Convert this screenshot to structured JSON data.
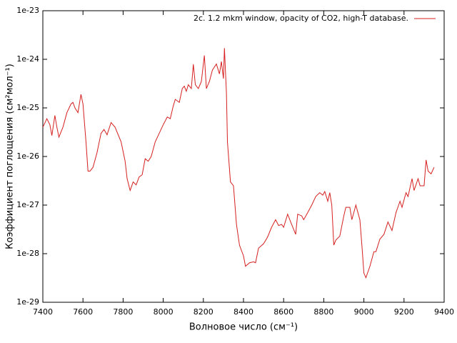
{
  "chart_data": {
    "type": "line",
    "xlabel": "Волновое число (см⁻¹)",
    "ylabel": "Коэффициент поглощения (см²мол⁻¹)",
    "log_y": true,
    "legend": "top-right",
    "xlim": [
      7400,
      9400
    ],
    "xticks": [
      7400,
      7600,
      7800,
      8000,
      8200,
      8400,
      8600,
      8800,
      9000,
      9200,
      9400
    ],
    "ylim": [
      1e-29,
      1e-23
    ],
    "yticks": [
      1e-29,
      1e-28,
      1e-27,
      1e-26,
      1e-25,
      1e-24,
      1e-23
    ],
    "x": [
      7400,
      7420,
      7435,
      7445,
      7460,
      7470,
      7480,
      7500,
      7520,
      7540,
      7550,
      7560,
      7575,
      7590,
      7600,
      7615,
      7625,
      7635,
      7650,
      7670,
      7690,
      7705,
      7720,
      7740,
      7760,
      7790,
      7810,
      7820,
      7835,
      7850,
      7865,
      7880,
      7895,
      7910,
      7925,
      7940,
      7960,
      7980,
      8000,
      8020,
      8035,
      8050,
      8060,
      8080,
      8095,
      8105,
      8115,
      8125,
      8140,
      8150,
      8160,
      8175,
      8190,
      8205,
      8215,
      8230,
      8245,
      8265,
      8280,
      8290,
      8300,
      8305,
      8315,
      8320,
      8335,
      8350,
      8365,
      8380,
      8400,
      8410,
      8430,
      8450,
      8460,
      8475,
      8500,
      8520,
      8540,
      8560,
      8575,
      8590,
      8600,
      8620,
      8640,
      8660,
      8670,
      8690,
      8700,
      8720,
      8740,
      8760,
      8780,
      8795,
      8805,
      8820,
      8830,
      8840,
      8850,
      8860,
      8880,
      8900,
      8910,
      8930,
      8940,
      8960,
      8980,
      8990,
      9000,
      9010,
      9030,
      9050,
      9060,
      9080,
      9100,
      9120,
      9140,
      9160,
      9180,
      9190,
      9210,
      9220,
      9240,
      9250,
      9270,
      9280,
      9300,
      9310,
      9320,
      9335,
      9350
    ],
    "series": [
      {
        "name": "2c. 1.2 mkm window, opacity of CO2, high-T database.",
        "color": "#d62020",
        "values": [
          4e-26,
          6e-26,
          4.5e-26,
          2.7e-26,
          7e-26,
          4e-26,
          2.5e-26,
          4e-26,
          8e-26,
          1.2e-25,
          1.3e-25,
          1e-25,
          8e-26,
          1.9e-25,
          1.2e-25,
          2e-26,
          5e-27,
          5e-27,
          6e-27,
          1.2e-26,
          3e-26,
          3.6e-26,
          2.8e-26,
          5e-26,
          4e-26,
          2e-26,
          8e-27,
          3.5e-27,
          2e-27,
          3e-27,
          2.6e-27,
          3.8e-27,
          4.2e-27,
          9e-27,
          8e-27,
          1e-26,
          2e-26,
          3e-26,
          4.5e-26,
          6.5e-26,
          6e-26,
          1.1e-25,
          1.5e-25,
          1.3e-25,
          2.5e-25,
          2.8e-25,
          2.2e-25,
          3e-25,
          2.5e-25,
          7.9e-25,
          3e-25,
          2.5e-25,
          3.5e-25,
          1.2e-24,
          2.5e-25,
          3.5e-25,
          6e-25,
          8e-25,
          5e-25,
          9e-25,
          4e-25,
          1.7e-24,
          2e-25,
          2e-26,
          3e-27,
          2.5e-27,
          4e-28,
          1.5e-28,
          9e-29,
          5.5e-29,
          6.5e-29,
          6.8e-29,
          6.5e-29,
          1.3e-28,
          1.6e-28,
          2.2e-28,
          3.5e-28,
          5e-28,
          3.8e-28,
          4e-28,
          3.5e-28,
          6.5e-28,
          4e-28,
          2.5e-28,
          6.5e-28,
          6e-28,
          5e-28,
          7e-28,
          1e-27,
          1.5e-27,
          1.8e-27,
          1.6e-27,
          1.9e-27,
          1.2e-27,
          1.8e-27,
          1e-27,
          1.5e-28,
          1.9e-28,
          2.3e-28,
          6e-28,
          9e-28,
          9e-28,
          5e-28,
          1e-27,
          5e-28,
          1.5e-28,
          4e-29,
          3.2e-29,
          5.5e-29,
          1.1e-28,
          1.1e-28,
          2e-28,
          2.5e-28,
          4.5e-28,
          3e-28,
          7e-28,
          1.2e-27,
          9e-28,
          1.8e-27,
          1.5e-27,
          3.5e-27,
          2e-27,
          3.5e-27,
          2.5e-27,
          2.5e-27,
          8.5e-27,
          5e-27,
          4.4e-27,
          6e-27
        ]
      }
    ]
  }
}
